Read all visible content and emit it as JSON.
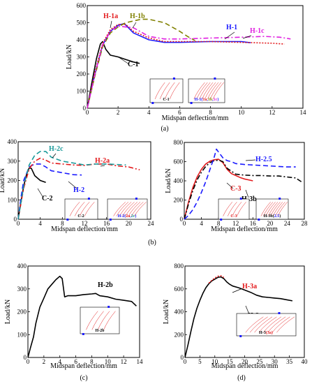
{
  "chart_data": [
    {
      "id": "a",
      "type": "line",
      "panel_label": "(a)",
      "xlabel": "Midspan deflection/mm",
      "ylabel": "Load/kN",
      "xlim": [
        0,
        14
      ],
      "ylim": [
        0,
        600
      ],
      "xticks": [
        0,
        2,
        4,
        6,
        8,
        10,
        12,
        14
      ],
      "yticks": [
        0,
        100,
        200,
        300,
        400,
        500,
        600
      ],
      "grid": false,
      "series": [
        {
          "name": "C-1",
          "color": "#000000",
          "dash": "",
          "x": [
            0,
            0.3,
            0.6,
            0.85,
            1.0,
            1.2,
            1.5,
            2.0,
            2.5,
            3.0,
            3.4
          ],
          "y": [
            0,
            150,
            290,
            375,
            390,
            345,
            310,
            300,
            285,
            270,
            262
          ]
        },
        {
          "name": "H-1",
          "color": "#1a1aff",
          "dash": "",
          "x": [
            0,
            0.5,
            1.0,
            1.5,
            2.0,
            2.4,
            3.0,
            4.0,
            5.0,
            6.0,
            8.0,
            10.0,
            10.6
          ],
          "y": [
            0,
            200,
            370,
            450,
            485,
            495,
            440,
            400,
            385,
            385,
            390,
            390,
            383
          ]
        },
        {
          "name": "H-1a",
          "color": "#e31a1c",
          "dash": "2,2",
          "x": [
            0,
            0.5,
            1.0,
            1.5,
            2.0,
            2.5,
            3.0,
            4.0,
            5.0,
            6.0,
            8.0,
            10.0,
            12.0,
            12.8
          ],
          "y": [
            0,
            210,
            380,
            460,
            490,
            490,
            450,
            410,
            390,
            390,
            390,
            385,
            380,
            375
          ]
        },
        {
          "name": "H-1b",
          "color": "#808000",
          "dash": "7,4",
          "x": [
            0,
            0.5,
            1.0,
            1.5,
            2.0,
            2.5,
            3.0,
            3.5,
            4.0,
            5.0,
            6.0,
            6.5,
            7.0
          ],
          "y": [
            0,
            190,
            360,
            440,
            475,
            500,
            510,
            520,
            520,
            500,
            450,
            420,
            395
          ]
        },
        {
          "name": "H-1c",
          "color": "#e020e0",
          "dash": "7,3,2,3",
          "x": [
            0,
            0.5,
            1.0,
            1.5,
            2.0,
            3.0,
            4.0,
            5.0,
            6.0,
            8.0,
            10.0,
            11.5,
            12.5,
            13.2
          ],
          "y": [
            0,
            200,
            370,
            450,
            480,
            470,
            420,
            405,
            405,
            410,
            415,
            420,
            415,
            405
          ]
        }
      ],
      "annotations": [
        {
          "text": "H-1a",
          "color": "#e31a1c"
        },
        {
          "text": "H-1b",
          "color": "#808000"
        },
        {
          "text": "H-1",
          "color": "#1a1aff"
        },
        {
          "text": "H-1c",
          "color": "#e020e0"
        },
        {
          "text": "C-1",
          "color": "#000000"
        }
      ],
      "insets": [
        {
          "label": "C-1"
        },
        {
          "label_parts": [
            {
              "text": "H-1(",
              "color": "#1a1aff"
            },
            {
              "text": "1a",
              "color": "#e31a1c"
            },
            {
              "text": ",",
              "color": "#1a1aff"
            },
            {
              "text": "1b",
              "color": "#808000"
            },
            {
              "text": ",",
              "color": "#1a1aff"
            },
            {
              "text": "1c",
              "color": "#e020e0"
            },
            {
              "text": ")",
              "color": "#1a1aff"
            }
          ]
        }
      ]
    },
    {
      "id": "b1",
      "type": "line",
      "panel_label": "(b)",
      "xlabel": "Midspan deflection/mm",
      "ylabel": "Load/kN",
      "xlim": [
        0,
        24
      ],
      "ylim": [
        0,
        400
      ],
      "xticks": [
        0,
        4,
        8,
        12,
        16,
        20,
        24
      ],
      "yticks": [
        0,
        100,
        200,
        300,
        400
      ],
      "grid": false,
      "series": [
        {
          "name": "C-2",
          "color": "#000000",
          "dash": "",
          "x": [
            0,
            0.5,
            1.0,
            1.5,
            2.0,
            2.4,
            3.0,
            4.0,
            5.0
          ],
          "y": [
            0,
            90,
            170,
            230,
            265,
            262,
            225,
            200,
            190
          ]
        },
        {
          "name": "H-2",
          "color": "#1a1aff",
          "dash": "7,4",
          "x": [
            0,
            0.5,
            1.0,
            2.0,
            3.0,
            4.0,
            5.0,
            6.0,
            8.0,
            10.0,
            11.5
          ],
          "y": [
            0,
            110,
            200,
            270,
            285,
            285,
            270,
            250,
            240,
            230,
            228
          ]
        },
        {
          "name": "H-2a",
          "color": "#e31a1c",
          "dash": "7,3,2,3",
          "x": [
            0,
            1.0,
            2.0,
            3.0,
            4.0,
            5.0,
            6.0,
            8.0,
            10.0,
            12.0,
            14.0,
            16.0,
            18.0,
            20.0,
            22.0
          ],
          "y": [
            0,
            160,
            260,
            300,
            315,
            305,
            290,
            285,
            280,
            278,
            285,
            285,
            275,
            270,
            255
          ]
        },
        {
          "name": "H-2c",
          "color": "#1a9a9a",
          "dash": "7,4",
          "x": [
            0,
            1.0,
            2.0,
            3.0,
            4.0,
            5.0,
            6.0,
            8.0,
            10.0,
            12.0,
            14.0,
            16.0,
            18.0,
            19.5
          ],
          "y": [
            0,
            170,
            280,
            330,
            350,
            350,
            320,
            300,
            290,
            280,
            285,
            285,
            282,
            280
          ]
        }
      ],
      "annotations": [
        {
          "text": "H-2c",
          "color": "#1a9a9a"
        },
        {
          "text": "H-2a",
          "color": "#e31a1c"
        },
        {
          "text": "H-2",
          "color": "#1a1aff"
        },
        {
          "text": "C-2",
          "color": "#000000"
        }
      ],
      "insets": [
        {
          "label": "C-2"
        },
        {
          "label_parts": [
            {
              "text": "H-2(",
              "color": "#1a1aff"
            },
            {
              "text": "2a",
              "color": "#e31a1c"
            },
            {
              "text": ",",
              "color": "#1a1aff"
            },
            {
              "text": "2c",
              "color": "#1a9a9a"
            },
            {
              "text": ")",
              "color": "#1a1aff"
            }
          ]
        }
      ]
    },
    {
      "id": "b2",
      "type": "line",
      "panel_label": "",
      "xlabel": "Midspan deflection/mm",
      "ylabel": "Load/kN",
      "xlim": [
        0,
        28
      ],
      "ylim": [
        0,
        800
      ],
      "xticks": [
        0,
        4,
        8,
        12,
        16,
        20,
        24,
        28
      ],
      "yticks": [
        0,
        200,
        400,
        600,
        800
      ],
      "grid": false,
      "series": [
        {
          "name": "C-3",
          "color": "#e31a1c",
          "dash": "",
          "x": [
            0,
            1.0,
            2.0,
            3.0,
            4.0,
            5.0,
            6.0,
            7.0,
            8.0,
            9.0,
            10.0,
            11.0,
            12.0,
            13.0,
            14.0,
            15.0,
            16.0
          ],
          "y": [
            0,
            180,
            330,
            440,
            520,
            575,
            605,
            620,
            625,
            590,
            520,
            475,
            455,
            435,
            420,
            410,
            400
          ]
        },
        {
          "name": "H-3b",
          "color": "#000000",
          "dash": "7,3,2,3",
          "x": [
            0,
            1.0,
            2.0,
            3.0,
            4.0,
            5.0,
            6.0,
            7.0,
            8.0,
            9.0,
            10.0,
            12.0,
            14.0,
            16.0,
            18.0,
            20.0,
            22.0,
            24.0,
            26.0,
            27.5
          ],
          "y": [
            0,
            160,
            300,
            410,
            490,
            550,
            590,
            610,
            615,
            600,
            530,
            470,
            460,
            455,
            455,
            450,
            450,
            440,
            430,
            385
          ]
        },
        {
          "name": "H-2.5",
          "color": "#1a1aff",
          "dash": "7,4",
          "x": [
            0,
            1.0,
            2.0,
            3.0,
            4.0,
            5.0,
            6.0,
            7.0,
            7.5,
            8.0,
            9.0,
            10.0,
            11.0,
            12.0,
            14.0,
            16.0,
            18.0,
            20.0,
            22.0,
            24.0,
            26.0
          ],
          "y": [
            0,
            40,
            100,
            180,
            280,
            390,
            520,
            650,
            730,
            700,
            640,
            610,
            600,
            580,
            570,
            565,
            560,
            555,
            550,
            545,
            545
          ]
        }
      ],
      "annotations": [
        {
          "text": "H-2.5",
          "color": "#1a1aff"
        },
        {
          "text": "C-3",
          "color": "#e31a1c"
        },
        {
          "text": "H-3b",
          "color": "#000000"
        }
      ],
      "insets": [
        {
          "label": "C-3",
          "color": "#e31a1c"
        },
        {
          "label_parts": [
            {
              "text": "H-3b(",
              "color": "#000000"
            },
            {
              "text": "2.5",
              "color": "#1a1aff"
            },
            {
              "text": ")",
              "color": "#000000"
            }
          ]
        }
      ]
    },
    {
      "id": "c",
      "type": "line",
      "panel_label": "(c)",
      "xlabel": "Midspan deflection/mm",
      "ylabel": "Load/kN",
      "xlim": [
        0,
        14
      ],
      "ylim": [
        0,
        400
      ],
      "xticks": [
        0,
        2,
        4,
        6,
        8,
        10,
        12,
        14
      ],
      "yticks": [
        0,
        100,
        200,
        300,
        400
      ],
      "grid": false,
      "series": [
        {
          "name": "H-2b",
          "color": "#000000",
          "dash": "",
          "x": [
            0,
            0.3,
            0.7,
            1.0,
            1.5,
            2.0,
            2.5,
            3.0,
            3.5,
            4.0,
            4.3,
            4.6,
            5.0,
            6.0,
            7.0,
            8.0,
            8.5,
            9.0,
            10.0,
            11.0,
            12.0,
            13.0,
            13.6
          ],
          "y": [
            0,
            40,
            90,
            150,
            220,
            260,
            300,
            320,
            340,
            355,
            345,
            265,
            270,
            270,
            275,
            278,
            280,
            270,
            265,
            255,
            250,
            245,
            225
          ]
        }
      ],
      "annotations": [
        {
          "text": "H-2b",
          "color": "#000000"
        }
      ],
      "insets": [
        {
          "label": "H-2b"
        }
      ]
    },
    {
      "id": "d",
      "type": "line",
      "panel_label": "(d)",
      "xlabel": "Midspan deflection/mm",
      "ylabel": "Load/kN",
      "xlim": [
        0,
        40
      ],
      "ylim": [
        0,
        800
      ],
      "xticks": [
        0,
        5,
        10,
        15,
        20,
        25,
        30,
        35,
        40
      ],
      "yticks": [
        0,
        200,
        400,
        600,
        800
      ],
      "grid": false,
      "series": [
        {
          "name": "H-3",
          "color": "#000000",
          "dash": "",
          "x": [
            0,
            1,
            2,
            3,
            4,
            5,
            6,
            7,
            8,
            9,
            10,
            11,
            12,
            13,
            14,
            15,
            16,
            18,
            20,
            22,
            24,
            26,
            28,
            30,
            32,
            34,
            36
          ],
          "y": [
            0,
            110,
            230,
            340,
            430,
            500,
            560,
            610,
            645,
            670,
            685,
            700,
            705,
            690,
            660,
            640,
            625,
            610,
            590,
            570,
            545,
            530,
            525,
            520,
            515,
            505,
            495
          ]
        },
        {
          "name": "H-3a",
          "color": "#e31a1c",
          "dash": "2,2",
          "x": [
            8,
            9,
            10,
            11,
            12,
            13
          ],
          "y": [
            650,
            675,
            695,
            710,
            715,
            700
          ]
        }
      ],
      "annotations": [
        {
          "text": "H-3a",
          "color": "#e31a1c"
        },
        {
          "text": "H-3",
          "color": "#000000"
        }
      ],
      "insets": [
        {
          "label_parts": [
            {
              "text": "H-3",
              "color": "#000000"
            },
            {
              "text": "(3a)",
              "color": "#e31a1c"
            }
          ]
        }
      ]
    }
  ]
}
